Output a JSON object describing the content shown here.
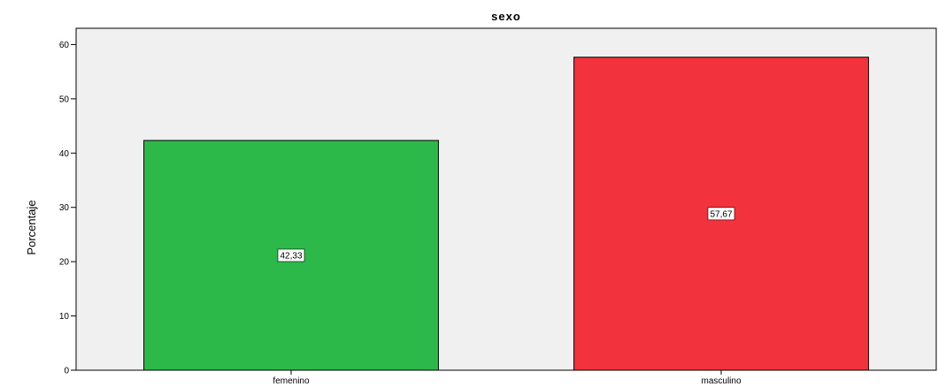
{
  "chart_data": {
    "type": "bar",
    "title": "sexo",
    "xlabel": "",
    "ylabel": "Porcentaje",
    "categories": [
      "femenino",
      "masculino"
    ],
    "values": [
      42.33,
      57.67
    ],
    "data_labels": [
      "42,33",
      "57,67"
    ],
    "ylim": [
      0,
      63
    ],
    "yticks": [
      0,
      10,
      20,
      30,
      40,
      50,
      60
    ],
    "grid": false,
    "legend": "none",
    "colors": {
      "plot_background": "#f0f0f0",
      "bars": [
        "#2db84a",
        "#f2323c"
      ]
    }
  }
}
